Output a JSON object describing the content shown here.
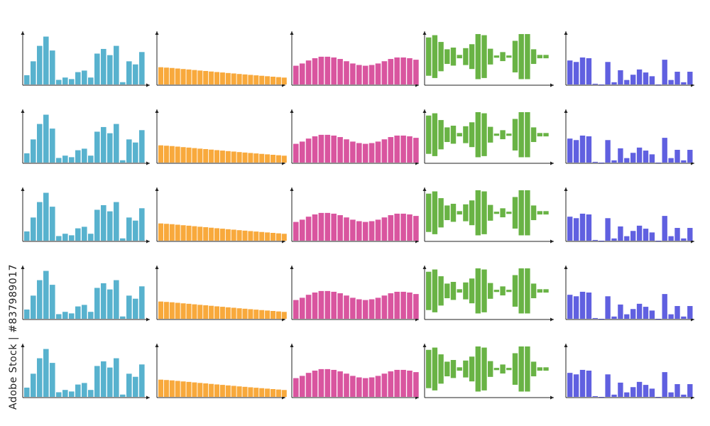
{
  "watermark": "Adobe Stock | #837989017",
  "colors": {
    "axis": "#222222",
    "series": [
      "#58b2ce",
      "#f8a93c",
      "#d9559f",
      "#69b345",
      "#6060e0"
    ]
  },
  "chart_data": [
    {
      "type": "bar",
      "row_count": 5,
      "column": 1,
      "color": "#58b2ce",
      "values": [
        12,
        30,
        50,
        62,
        44,
        6,
        9,
        7,
        16,
        18,
        9,
        40,
        46,
        38,
        50,
        3,
        30,
        26,
        42
      ],
      "ylim": [
        0,
        68
      ]
    },
    {
      "type": "bar",
      "row_count": 5,
      "column": 2,
      "color": "#f8a93c",
      "values": [
        23,
        22.5,
        22,
        21.3,
        20.6,
        20,
        19.3,
        18.6,
        18,
        17.3,
        16.6,
        16,
        15.3,
        14.7,
        14,
        13.4,
        12.8,
        12.2,
        11.6,
        11,
        10.4,
        9.8,
        9.2
      ],
      "ylim": [
        0,
        70
      ]
    },
    {
      "type": "bar",
      "row_count": 5,
      "column": 3,
      "color": "#d9559f",
      "values": [
        25,
        28,
        32,
        35,
        37,
        37,
        36,
        34,
        31,
        28,
        26,
        25,
        26,
        28,
        31,
        34,
        36,
        36,
        35,
        33
      ],
      "ylim": [
        0,
        70
      ]
    },
    {
      "type": "bar",
      "subtype": "diverging",
      "row_count": 5,
      "column": 4,
      "color": "#69b345",
      "values": [
        34,
        38,
        26,
        13,
        16,
        3,
        15,
        22,
        40,
        38,
        14,
        2,
        8,
        2,
        28,
        40,
        40,
        13,
        3,
        3
      ],
      "ylim": [
        -45,
        45
      ]
    },
    {
      "type": "bar",
      "row_count": 5,
      "column": 5,
      "color": "#6060e0",
      "values": [
        32,
        30,
        36,
        35,
        1,
        0,
        30,
        3,
        19,
        6,
        13,
        20,
        16,
        11,
        0,
        33,
        6,
        17,
        3,
        17
      ],
      "ylim": [
        0,
        70
      ]
    }
  ]
}
